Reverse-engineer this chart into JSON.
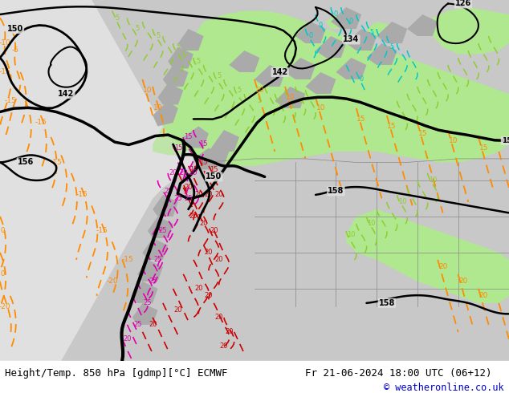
{
  "title_left": "Height/Temp. 850 hPa [gdmp][°C] ECMWF",
  "title_right": "Fr 21-06-2024 18:00 UTC (06+12)",
  "copyright": "© weatheronline.co.uk",
  "copyright_color": "#0000cc",
  "bg_color": "#e8e8e8",
  "figsize": [
    6.34,
    4.9
  ],
  "dpi": 100,
  "bottom_bar_color": "#ffffff",
  "bottom_bar_height": 0.082,
  "title_fontsize": 9.0,
  "copyright_fontsize": 8.5,
  "ocean_color": "#e0e0e0",
  "land_color": "#c8c8c8",
  "green_color": "#b0e890",
  "green_alpha": 1.0
}
